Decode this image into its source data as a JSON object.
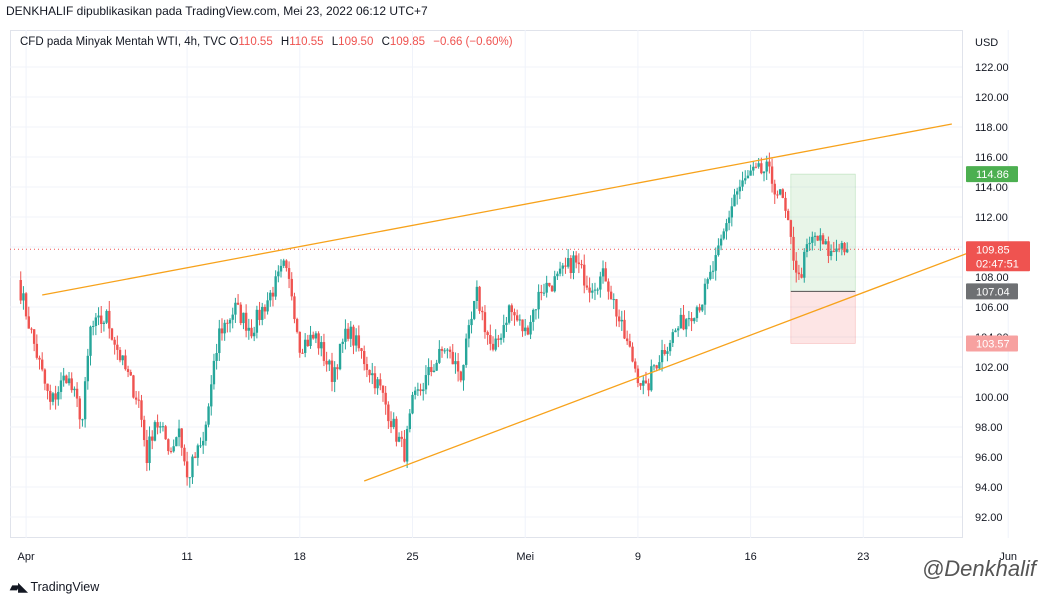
{
  "header": {
    "title": "DENKHALIF dipublikasikan pada TradingView.com, Mei 23, 2022 06:12 UTC+7"
  },
  "legend": {
    "symbol": "CFD pada Minyak Mentah WTI, 4h, TVC",
    "open_label": "O",
    "open": "110.55",
    "high_label": "H",
    "high": "110.55",
    "low_label": "L",
    "low": "109.50",
    "close_label": "C",
    "close": "109.85",
    "change": "−0.66 (−0.60%)"
  },
  "footer": {
    "brand": "TradingView",
    "watermark": "@Denkhalif"
  },
  "colors": {
    "up": "#26a69a",
    "down": "#ef5350",
    "channel": "#f7a21b",
    "target": "#4caf50",
    "stop": "#f7a1a0"
  },
  "chart_data": {
    "type": "candlestick",
    "currency": "USD",
    "y_ticks": [
      "122.00",
      "120.00",
      "118.00",
      "116.00",
      "114.00",
      "112.00",
      "110.00",
      "108.00",
      "106.00",
      "104.00",
      "102.00",
      "100.00",
      "98.00",
      "96.00",
      "94.00",
      "92.00"
    ],
    "ylim": [
      90.8,
      124.2
    ],
    "x_labels": [
      "Apr",
      "11",
      "18",
      "25",
      "Mei",
      "9",
      "16",
      "23",
      "Jun"
    ],
    "x_label_days": [
      1,
      11,
      18,
      25,
      32,
      39,
      46,
      53,
      62
    ],
    "current_price": "109.85",
    "countdown": "02:47:51",
    "target_price": "114.86",
    "entry_price": "107.04",
    "stop_price": "103.57",
    "channel_upper": [
      [
        2,
        106.8
      ],
      [
        58.5,
        118.2
      ]
    ],
    "channel_lower": [
      [
        22,
        94.4
      ],
      [
        60.5,
        110.0
      ]
    ],
    "anchor_path": [
      [
        0.5,
        107.8
      ],
      [
        1.5,
        103.5
      ],
      [
        2.5,
        99.5
      ],
      [
        3.5,
        101.5
      ],
      [
        4.5,
        98.5
      ],
      [
        5,
        104.5
      ],
      [
        6,
        105.3
      ],
      [
        7,
        102.2
      ],
      [
        8,
        99.7
      ],
      [
        8.5,
        96.0
      ],
      [
        9,
        98.5
      ],
      [
        10,
        96.5
      ],
      [
        10.5,
        98.0
      ],
      [
        11,
        94.5
      ],
      [
        11.5,
        96.0
      ],
      [
        12,
        96.9
      ],
      [
        13,
        104.3
      ],
      [
        14,
        105.9
      ],
      [
        15,
        104.5
      ],
      [
        16,
        106.5
      ],
      [
        16.5,
        107.5
      ],
      [
        17,
        108.6
      ],
      [
        17.5,
        107.0
      ],
      [
        18,
        103.5
      ],
      [
        19,
        104.0
      ],
      [
        20,
        101.5
      ],
      [
        21,
        104.5
      ],
      [
        22,
        102.5
      ],
      [
        23,
        100.5
      ],
      [
        24,
        97.5
      ],
      [
        24.5,
        96.3
      ],
      [
        25,
        99.5
      ],
      [
        26,
        101.5
      ],
      [
        27,
        103.3
      ],
      [
        28,
        101.5
      ],
      [
        29,
        106.8
      ],
      [
        30,
        102.8
      ],
      [
        31,
        105.9
      ],
      [
        32,
        104.3
      ],
      [
        33,
        107.2
      ],
      [
        34,
        107.8
      ],
      [
        35,
        109.1
      ],
      [
        36,
        107.5
      ],
      [
        37,
        108.1
      ],
      [
        38,
        104.5
      ],
      [
        39,
        101.5
      ],
      [
        39.5,
        100.3
      ],
      [
        40,
        102.1
      ],
      [
        41,
        103.9
      ],
      [
        42,
        105.3
      ],
      [
        43,
        106.5
      ],
      [
        44,
        109.5
      ],
      [
        45,
        113.5
      ],
      [
        46,
        114.8
      ],
      [
        47,
        115.1
      ],
      [
        48,
        113.0
      ],
      [
        48.5,
        110.3
      ],
      [
        49,
        107.8
      ],
      [
        49.5,
        109.8
      ],
      [
        50,
        110.7
      ],
      [
        51,
        109.5
      ],
      [
        51.5,
        110.3
      ],
      [
        52,
        109.85
      ]
    ]
  }
}
